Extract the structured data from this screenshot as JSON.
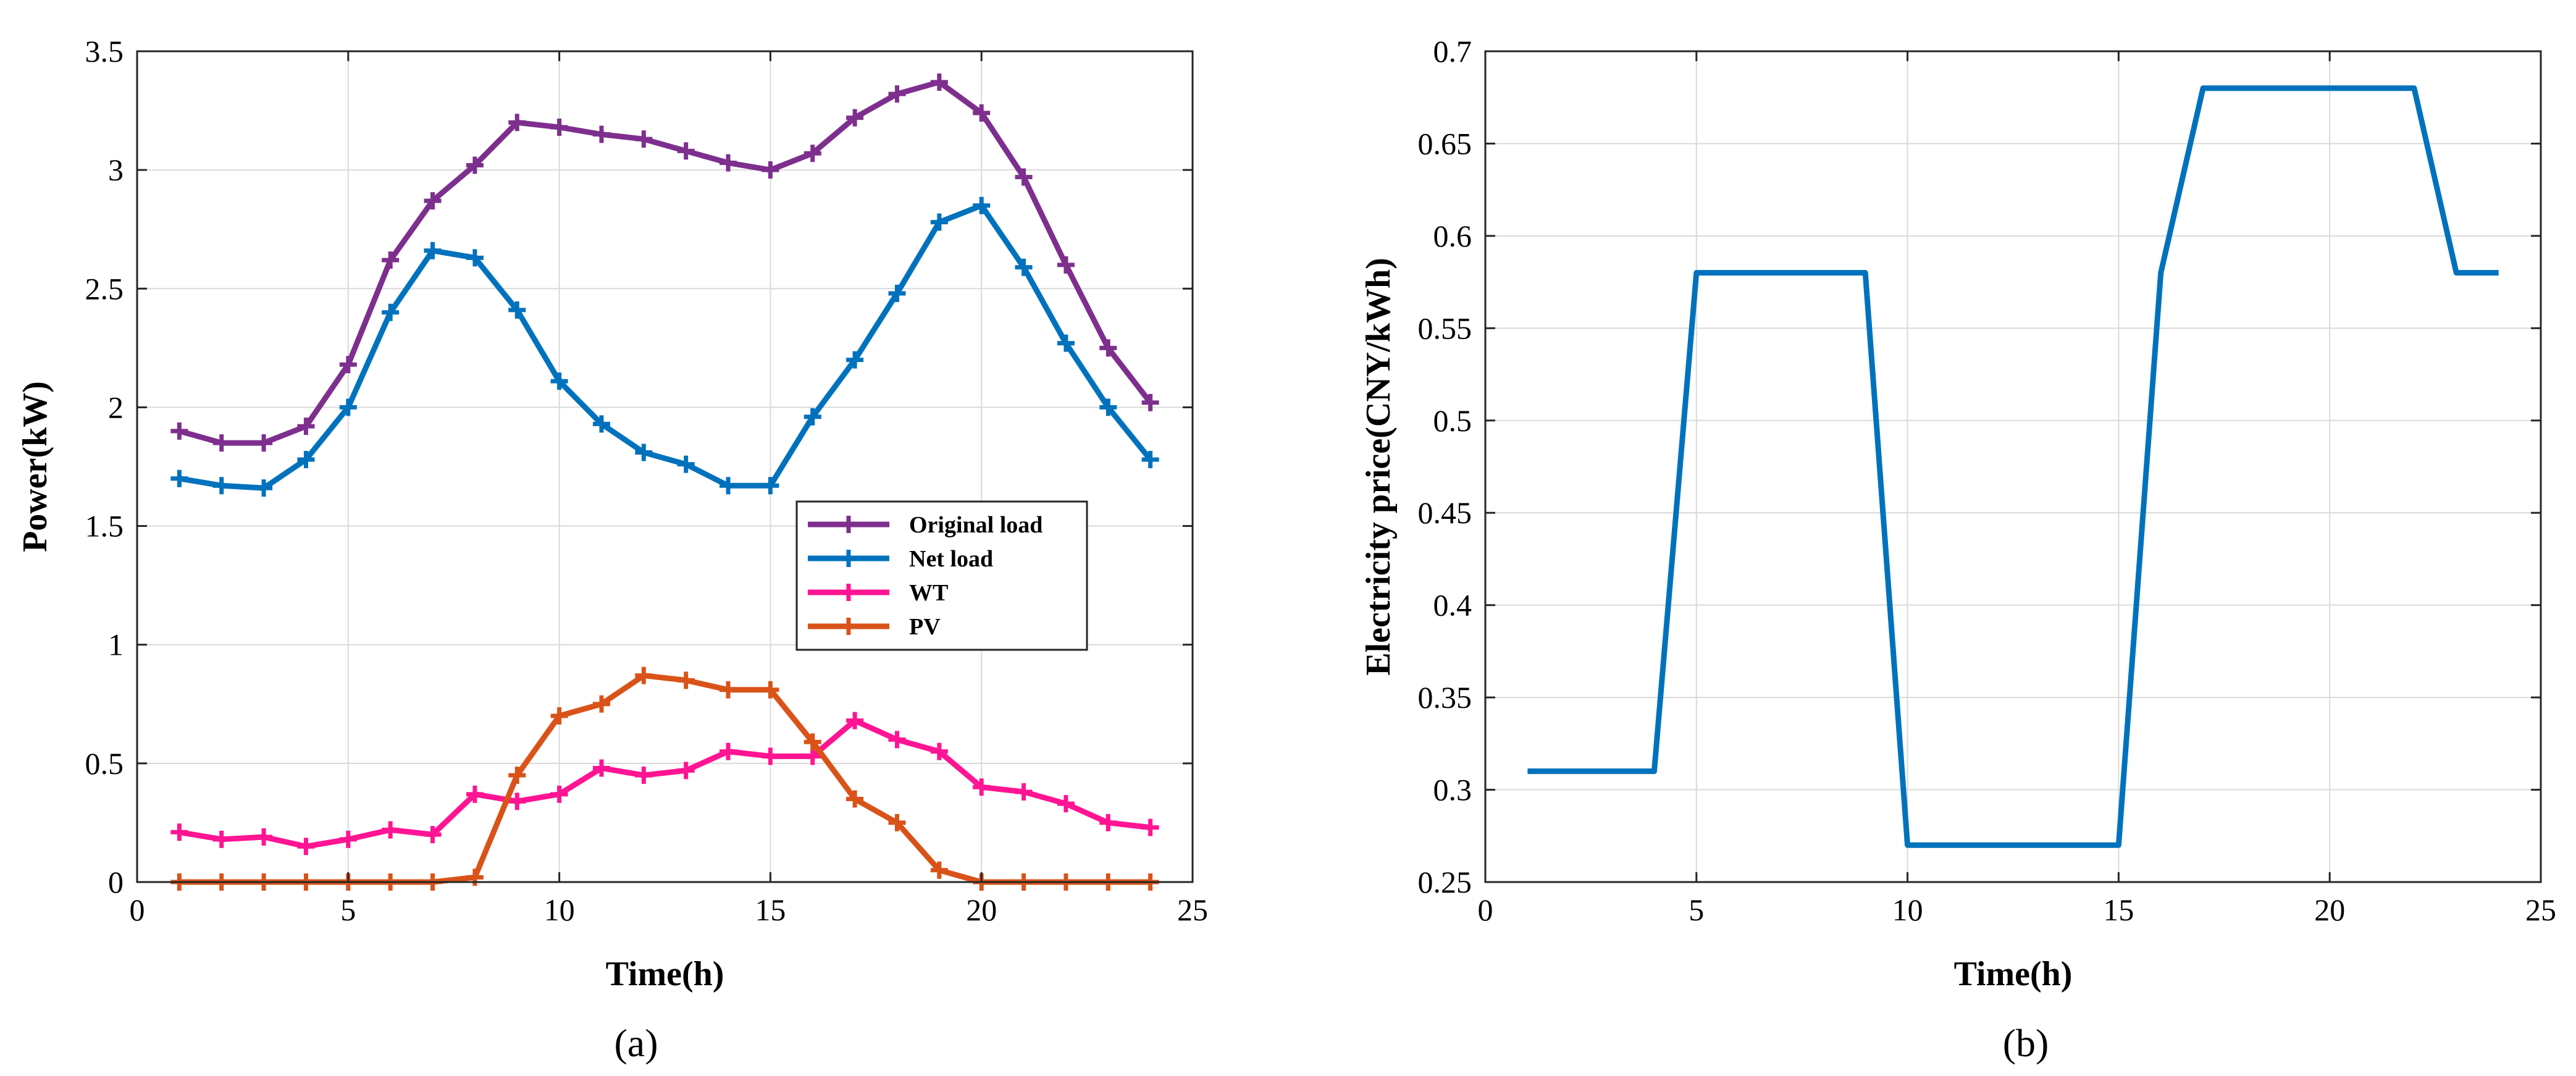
{
  "colors": {
    "original_load": "#7E2F8E",
    "net_load": "#0072BD",
    "wt": "#FF1493",
    "pv": "#D95319"
  },
  "chart_data": [
    {
      "type": "line",
      "caption": "(a)",
      "xlabel": "Time(h)",
      "ylabel": "Power(kW)",
      "xlim": [
        0,
        25
      ],
      "ylim": [
        0,
        3.5
      ],
      "xticks": [
        "0",
        "5",
        "10",
        "15",
        "20",
        "25"
      ],
      "yticks": [
        "0",
        "0.5",
        "1",
        "1.5",
        "2",
        "2.5",
        "3",
        "3.5"
      ],
      "legend_position": "center-right",
      "marker": "plus",
      "x": [
        1,
        2,
        3,
        4,
        5,
        6,
        7,
        8,
        9,
        10,
        11,
        12,
        13,
        14,
        15,
        16,
        17,
        18,
        19,
        20,
        21,
        22,
        23,
        24
      ],
      "series": [
        {
          "name": "Original load",
          "color_key": "original_load",
          "values": [
            1.9,
            1.85,
            1.85,
            1.92,
            2.18,
            2.62,
            2.87,
            3.02,
            3.2,
            3.18,
            3.15,
            3.13,
            3.08,
            3.03,
            3.0,
            3.07,
            3.22,
            3.32,
            3.37,
            3.24,
            2.97,
            2.6,
            2.25,
            2.02
          ]
        },
        {
          "name": "Net load",
          "color_key": "net_load",
          "values": [
            1.7,
            1.67,
            1.66,
            1.78,
            2.0,
            2.4,
            2.66,
            2.63,
            2.41,
            2.11,
            1.93,
            1.81,
            1.76,
            1.67,
            1.67,
            1.96,
            2.2,
            2.48,
            2.78,
            2.85,
            2.59,
            2.27,
            2.0,
            1.78
          ]
        },
        {
          "name": "WT",
          "color_key": "wt",
          "values": [
            0.21,
            0.18,
            0.19,
            0.15,
            0.18,
            0.22,
            0.2,
            0.37,
            0.34,
            0.37,
            0.48,
            0.45,
            0.47,
            0.55,
            0.53,
            0.53,
            0.68,
            0.6,
            0.55,
            0.4,
            0.38,
            0.33,
            0.25,
            0.23
          ]
        },
        {
          "name": "PV",
          "color_key": "pv",
          "values": [
            0,
            0,
            0,
            0,
            0,
            0,
            0,
            0.02,
            0.45,
            0.7,
            0.75,
            0.87,
            0.85,
            0.81,
            0.81,
            0.59,
            0.35,
            0.25,
            0.05,
            0,
            0,
            0,
            0,
            0
          ]
        }
      ]
    },
    {
      "type": "line",
      "caption": "(b)",
      "xlabel": "Time(h)",
      "ylabel": "Electricity price(CNY/kWh)",
      "xlim": [
        0,
        25
      ],
      "ylim": [
        0.25,
        0.7
      ],
      "xticks": [
        "0",
        "5",
        "10",
        "15",
        "20",
        "25"
      ],
      "yticks": [
        "0.25",
        "0.3",
        "0.35",
        "0.4",
        "0.45",
        "0.5",
        "0.55",
        "0.6",
        "0.65",
        "0.7"
      ],
      "marker": "none",
      "x": [
        1,
        2,
        3,
        4,
        5,
        6,
        7,
        8,
        9,
        10,
        11,
        12,
        13,
        14,
        15,
        16,
        17,
        18,
        19,
        20,
        21,
        22,
        23,
        24
      ],
      "series": [
        {
          "name": "Electricity price",
          "color_key": "net_load",
          "values": [
            0.31,
            0.31,
            0.31,
            0.31,
            0.58,
            0.58,
            0.58,
            0.58,
            0.58,
            0.27,
            0.27,
            0.27,
            0.27,
            0.27,
            0.27,
            0.58,
            0.68,
            0.68,
            0.68,
            0.68,
            0.68,
            0.68,
            0.58,
            0.58
          ]
        }
      ]
    }
  ]
}
